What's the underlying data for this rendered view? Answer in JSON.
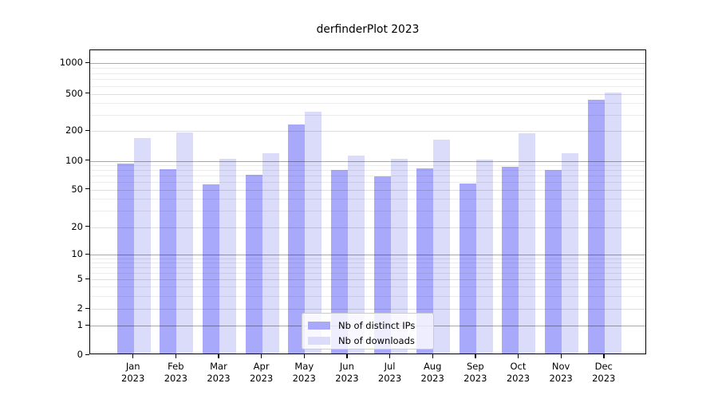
{
  "chart_data": {
    "type": "bar",
    "title": "derfinderPlot 2023",
    "x": [
      "Jan 2023",
      "Feb 2023",
      "Mar 2023",
      "Apr 2023",
      "May 2023",
      "Jun 2023",
      "Jul 2023",
      "Aug 2023",
      "Sep 2023",
      "Oct 2023",
      "Nov 2023",
      "Dec 2023"
    ],
    "series": [
      {
        "name": "Nb of distinct IPs",
        "color": "#a9a9fb",
        "values": [
          91,
          79,
          55,
          69,
          227,
          77,
          66,
          80,
          56,
          83,
          78,
          415
        ]
      },
      {
        "name": "Nb of downloads",
        "color": "#dbdbfa",
        "values": [
          163,
          187,
          101,
          115,
          310,
          109,
          101,
          158,
          100,
          183,
          115,
          497
        ]
      }
    ],
    "y_ticks": [
      0,
      1,
      2,
      5,
      10,
      20,
      50,
      100,
      200,
      500,
      1000
    ],
    "y_minor_ticks": [
      3,
      4,
      6,
      7,
      8,
      9,
      30,
      40,
      60,
      70,
      80,
      90,
      300,
      400,
      600,
      700,
      800,
      900
    ],
    "y_scale": "symlog",
    "ylim": [
      0,
      1200
    ],
    "xlabel": "",
    "ylabel": "",
    "grid": true,
    "legend_position": "lower center",
    "colors": {
      "distinct_ips": "#a9a9fb",
      "downloads": "#dbdbfa",
      "grid_major_power10": "#a8a8a8",
      "grid_major": "#dcdcdc",
      "grid_minor": "#ececec",
      "spine": "#000000",
      "legend_border": "#cccccc"
    }
  }
}
